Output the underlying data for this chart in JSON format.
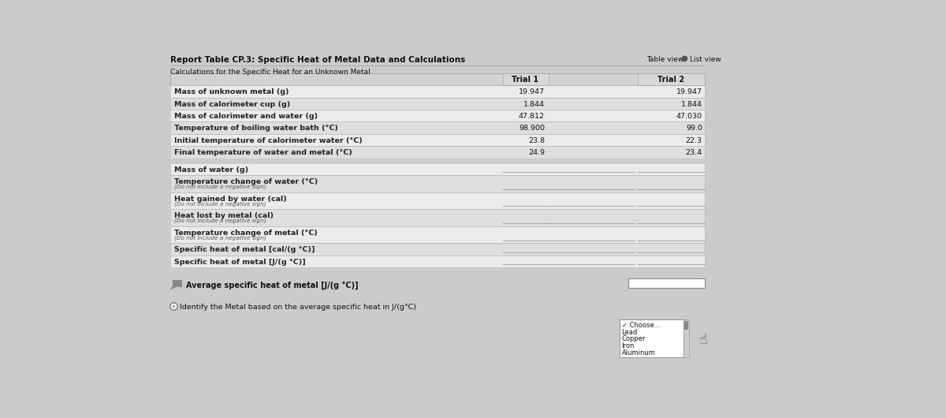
{
  "title": "Report Table CP.3: Specific Heat of Metal Data and Calculations",
  "subtitle": "Calculations for the Specific Heat for an Unknown Metal",
  "table_view_label": "Table view",
  "list_view_label": "List view",
  "trial1_label": "Trial 1",
  "trial2_label": "Trial 2",
  "rows": [
    {
      "label": "Mass of unknown metal (g)",
      "val1": "19.947",
      "val2": "19.947",
      "sublabel": "",
      "sublabel2": ""
    },
    {
      "label": "Mass of calorimeter cup (g)",
      "val1": "1.844",
      "val2": "1.844",
      "sublabel": "",
      "sublabel2": ""
    },
    {
      "label": "Mass of calorimeter and water (g)",
      "val1": "47.812",
      "val2": "47.030",
      "sublabel": "",
      "sublabel2": ""
    },
    {
      "label": "Temperature of boiling water bath (°C)",
      "val1": "98.900",
      "val2": "99.0",
      "sublabel": "",
      "sublabel2": ""
    },
    {
      "label": "Initial temperature of calorimeter water (°C)",
      "val1": "23.8",
      "val2": "22.3",
      "sublabel": "",
      "sublabel2": ""
    },
    {
      "label": "Final temperature of water and metal (°C)",
      "val1": "24.9",
      "val2": "23.4",
      "sublabel": "",
      "sublabel2": ""
    },
    {
      "label": "Mass of water (g)",
      "val1": "",
      "val2": "",
      "sublabel": "",
      "sublabel2": ""
    },
    {
      "label": "Temperature change of water (°C)",
      "val1": "",
      "val2": "",
      "sublabel": "(Do not include a negative sign)",
      "sublabel2": ""
    },
    {
      "label": "Heat gained by water (cal)",
      "val1": "",
      "val2": "",
      "sublabel": "(Do not include a negative sign)",
      "sublabel2": ""
    },
    {
      "label": "Heat lost by metal (cal)",
      "val1": "",
      "val2": "",
      "sublabel": "(Do not include a negative sign)",
      "sublabel2": ""
    },
    {
      "label": "Temperature change of metal (°C)",
      "val1": "",
      "val2": "",
      "sublabel": "(Do not include a negative sign)",
      "sublabel2": ""
    },
    {
      "label": "Specific heat of metal [cal/(g °C)]",
      "val1": "",
      "val2": "",
      "sublabel": "",
      "sublabel2": ""
    },
    {
      "label": "Specific heat of metal [J/(g °C)]",
      "val1": "",
      "val2": "",
      "sublabel": "",
      "sublabel2": ""
    }
  ],
  "avg_label": "Average specific heat of metal [J/(g °C)]",
  "identify_label": "Identify the Metal based on the average specific heat in J/(g°C)",
  "dropdown_items": [
    "✓ Choose...",
    "Lead",
    "Copper",
    "Iron",
    "Aluminum"
  ],
  "bg_color": "#cbcbcb",
  "row_light": "#ebebeb",
  "row_dark": "#dedede",
  "header_bg": "#d2d2d2",
  "white": "#ffffff",
  "text_dark": "#111111",
  "text_label": "#222222",
  "line_color": "#b0b0b0",
  "border_color": "#999999",
  "input_line_color": "#aaaaaa"
}
